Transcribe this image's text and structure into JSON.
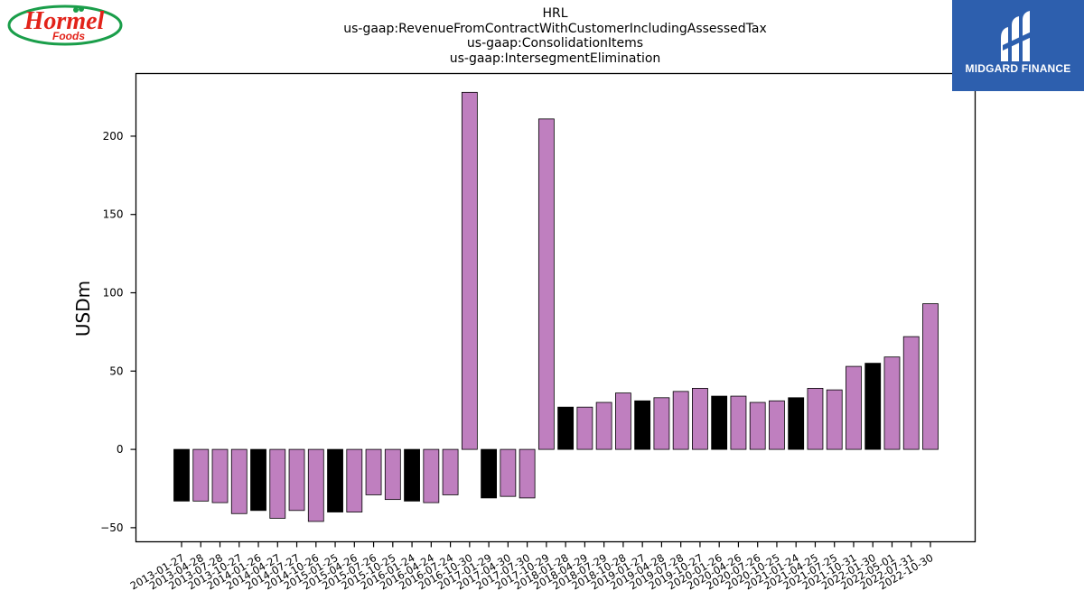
{
  "title_lines": [
    "HRL",
    "us-gaap:RevenueFromContractWithCustomerIncludingAssessedTax",
    "us-gaap:ConsolidationItems",
    "us-gaap:IntersegmentElimination"
  ],
  "logos": {
    "left_text": "Hormel Foods",
    "right_text": "MIDGARD FINANCE"
  },
  "colors": {
    "bar_default": "#bf7fbf",
    "bar_highlight": "#000000",
    "bar_edge": "#000000",
    "brand_blue": "#2d5fae"
  },
  "chart_data": {
    "type": "bar",
    "ylabel": "USDm",
    "xlabel": "",
    "ylim": [
      -59,
      240
    ],
    "yticks": [
      -50,
      0,
      50,
      100,
      150,
      200
    ],
    "grid": false,
    "categories": [
      "2013-01-27",
      "2013-04-28",
      "2013-07-28",
      "2013-10-27",
      "2014-01-26",
      "2014-04-27",
      "2014-07-27",
      "2014-10-26",
      "2015-01-25",
      "2015-04-26",
      "2015-07-26",
      "2015-10-25",
      "2016-01-24",
      "2016-04-24",
      "2016-07-24",
      "2016-10-30",
      "2017-01-29",
      "2017-04-30",
      "2017-07-30",
      "2017-10-29",
      "2018-01-28",
      "2018-04-29",
      "2018-07-29",
      "2018-10-28",
      "2019-01-27",
      "2019-04-28",
      "2019-07-28",
      "2019-10-27",
      "2020-01-26",
      "2020-04-26",
      "2020-07-26",
      "2020-10-25",
      "2021-01-24",
      "2021-04-25",
      "2021-07-25",
      "2021-10-31",
      "2022-01-30",
      "2022-05-01",
      "2022-07-31",
      "2022-10-30"
    ],
    "values": [
      -33,
      -33,
      -34,
      -41,
      -39,
      -44,
      -39,
      -46,
      -40,
      -40,
      -29,
      -32,
      -33,
      -34,
      -29,
      228,
      -31,
      -30,
      -31,
      211,
      27,
      27,
      30,
      36,
      31,
      33,
      37,
      39,
      34,
      34,
      30,
      31,
      33,
      39,
      38,
      53,
      55,
      59,
      72,
      93
    ],
    "highlighted": [
      true,
      false,
      false,
      false,
      true,
      false,
      false,
      false,
      true,
      false,
      false,
      false,
      true,
      false,
      false,
      false,
      true,
      false,
      false,
      false,
      true,
      false,
      false,
      false,
      true,
      false,
      false,
      false,
      true,
      false,
      false,
      false,
      true,
      false,
      false,
      false,
      true,
      false,
      false,
      false
    ]
  }
}
